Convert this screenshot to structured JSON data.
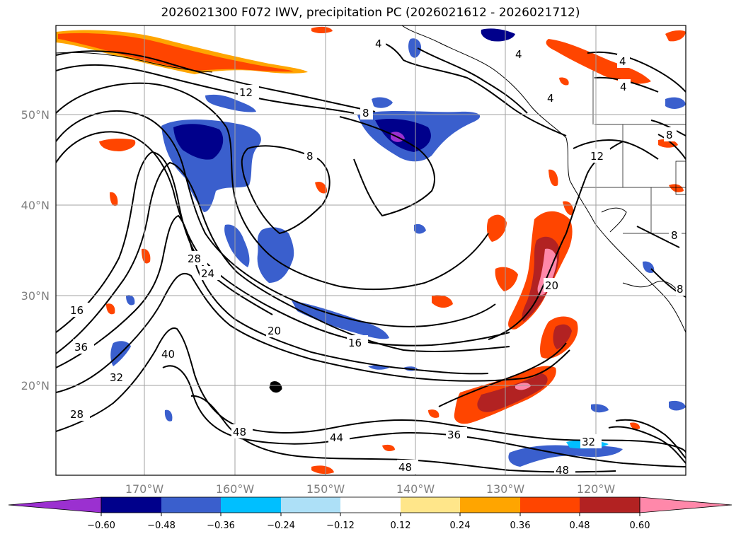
{
  "title": "2026021300 F072 IWV, precipitation PC (2026021612 - 2026021712)",
  "axes": {
    "latitude_labels": [
      "50°N",
      "40°N",
      "30°N",
      "20°N"
    ],
    "longitude_labels": [
      "170°W",
      "160°W",
      "150°W",
      "140°W",
      "130°W",
      "120°W"
    ]
  },
  "contour_labels": [
    "4",
    "4",
    "4",
    "4",
    "4",
    "12",
    "8",
    "8",
    "12",
    "8",
    "28",
    "24",
    "16",
    "36",
    "40",
    "32",
    "28",
    "20",
    "16",
    "20",
    "48",
    "44",
    "36",
    "48",
    "32",
    "48",
    "8",
    "8"
  ],
  "colorbar": {
    "tick_labels": [
      "−0.60",
      "−0.48",
      "−0.36",
      "−0.24",
      "−0.12",
      "0.12",
      "0.24",
      "0.36",
      "0.48",
      "0.60"
    ],
    "colors": [
      "#9b30d0",
      "#00008b",
      "#3a5fcd",
      "#00bfff",
      "#ade0f7",
      "#ffffff",
      "#ffe68a",
      "#ffa500",
      "#ff4500",
      "#b22222",
      "#ff88aa"
    ]
  },
  "colors": {
    "neg_strong": "#00008b",
    "neg_mid": "#3a5fcd",
    "neg_light": "#00bfff",
    "pos_light": "#ffa500",
    "pos_mid": "#ff4500",
    "pos_strong": "#b22222",
    "pos_max": "#ff88aa",
    "grid": "#a0a0a0"
  }
}
